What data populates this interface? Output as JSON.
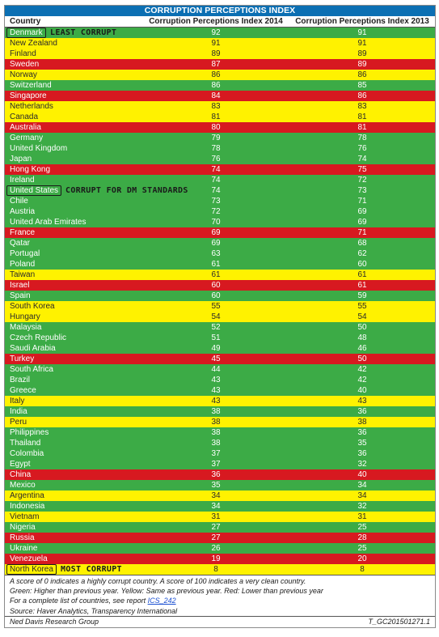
{
  "chart_data": {
    "type": "table",
    "title": "CORRUPTION PERCEPTIONS INDEX",
    "columns": [
      "Country",
      "Corruption Perceptions Index 2014",
      "Corruption Perceptions Index 2013"
    ],
    "rows": [
      {
        "country": "Denmark",
        "v2014": "92",
        "v2013": "91",
        "color": "green",
        "annotation": "LEAST CORRUPT",
        "boxed": true
      },
      {
        "country": "New Zealand",
        "v2014": "91",
        "v2013": "91",
        "color": "yellow"
      },
      {
        "country": "Finland",
        "v2014": "89",
        "v2013": "89",
        "color": "yellow"
      },
      {
        "country": "Sweden",
        "v2014": "87",
        "v2013": "89",
        "color": "red"
      },
      {
        "country": "Norway",
        "v2014": "86",
        "v2013": "86",
        "color": "yellow"
      },
      {
        "country": "Switzerland",
        "v2014": "86",
        "v2013": "85",
        "color": "green"
      },
      {
        "country": "Singapore",
        "v2014": "84",
        "v2013": "86",
        "color": "red"
      },
      {
        "country": "Netherlands",
        "v2014": "83",
        "v2013": "83",
        "color": "yellow"
      },
      {
        "country": "Canada",
        "v2014": "81",
        "v2013": "81",
        "color": "yellow"
      },
      {
        "country": "Australia",
        "v2014": "80",
        "v2013": "81",
        "color": "red"
      },
      {
        "country": "Germany",
        "v2014": "79",
        "v2013": "78",
        "color": "green"
      },
      {
        "country": "United Kingdom",
        "v2014": "78",
        "v2013": "76",
        "color": "green"
      },
      {
        "country": "Japan",
        "v2014": "76",
        "v2013": "74",
        "color": "green"
      },
      {
        "country": "Hong Kong",
        "v2014": "74",
        "v2013": "75",
        "color": "red"
      },
      {
        "country": "Ireland",
        "v2014": "74",
        "v2013": "72",
        "color": "green"
      },
      {
        "country": "United States",
        "v2014": "74",
        "v2013": "73",
        "color": "green",
        "annotation": "CORRUPT FOR DM STANDARDS",
        "boxed": true
      },
      {
        "country": "Chile",
        "v2014": "73",
        "v2013": "71",
        "color": "green"
      },
      {
        "country": "Austria",
        "v2014": "72",
        "v2013": "69",
        "color": "green"
      },
      {
        "country": "United Arab Emirates",
        "v2014": "70",
        "v2013": "69",
        "color": "green"
      },
      {
        "country": "France",
        "v2014": "69",
        "v2013": "71",
        "color": "red"
      },
      {
        "country": "Qatar",
        "v2014": "69",
        "v2013": "68",
        "color": "green"
      },
      {
        "country": "Portugal",
        "v2014": "63",
        "v2013": "62",
        "color": "green"
      },
      {
        "country": "Poland",
        "v2014": "61",
        "v2013": "60",
        "color": "green"
      },
      {
        "country": "Taiwan",
        "v2014": "61",
        "v2013": "61",
        "color": "yellow"
      },
      {
        "country": "Israel",
        "v2014": "60",
        "v2013": "61",
        "color": "red"
      },
      {
        "country": "Spain",
        "v2014": "60",
        "v2013": "59",
        "color": "green"
      },
      {
        "country": "South Korea",
        "v2014": "55",
        "v2013": "55",
        "color": "yellow"
      },
      {
        "country": "Hungary",
        "v2014": "54",
        "v2013": "54",
        "color": "yellow"
      },
      {
        "country": "Malaysia",
        "v2014": "52",
        "v2013": "50",
        "color": "green"
      },
      {
        "country": "Czech Republic",
        "v2014": "51",
        "v2013": "48",
        "color": "green"
      },
      {
        "country": "Saudi Arabia",
        "v2014": "49",
        "v2013": "46",
        "color": "green"
      },
      {
        "country": "Turkey",
        "v2014": "45",
        "v2013": "50",
        "color": "red"
      },
      {
        "country": "South Africa",
        "v2014": "44",
        "v2013": "42",
        "color": "green"
      },
      {
        "country": "Brazil",
        "v2014": "43",
        "v2013": "42",
        "color": "green"
      },
      {
        "country": "Greece",
        "v2014": "43",
        "v2013": "40",
        "color": "green"
      },
      {
        "country": "Italy",
        "v2014": "43",
        "v2013": "43",
        "color": "yellow"
      },
      {
        "country": "India",
        "v2014": "38",
        "v2013": "36",
        "color": "green"
      },
      {
        "country": "Peru",
        "v2014": "38",
        "v2013": "38",
        "color": "yellow"
      },
      {
        "country": "Philippines",
        "v2014": "38",
        "v2013": "36",
        "color": "green"
      },
      {
        "country": "Thailand",
        "v2014": "38",
        "v2013": "35",
        "color": "green"
      },
      {
        "country": "Colombia",
        "v2014": "37",
        "v2013": "36",
        "color": "green"
      },
      {
        "country": "Egypt",
        "v2014": "37",
        "v2013": "32",
        "color": "green"
      },
      {
        "country": "China",
        "v2014": "36",
        "v2013": "40",
        "color": "red"
      },
      {
        "country": "Mexico",
        "v2014": "35",
        "v2013": "34",
        "color": "green"
      },
      {
        "country": "Argentina",
        "v2014": "34",
        "v2013": "34",
        "color": "yellow"
      },
      {
        "country": "Indonesia",
        "v2014": "34",
        "v2013": "32",
        "color": "green"
      },
      {
        "country": "Vietnam",
        "v2014": "31",
        "v2013": "31",
        "color": "yellow"
      },
      {
        "country": "Nigeria",
        "v2014": "27",
        "v2013": "25",
        "color": "green"
      },
      {
        "country": "Russia",
        "v2014": "27",
        "v2013": "28",
        "color": "red"
      },
      {
        "country": "Ukraine",
        "v2014": "26",
        "v2013": "25",
        "color": "green"
      },
      {
        "country": "Venezuela",
        "v2014": "19",
        "v2013": "20",
        "color": "red"
      },
      {
        "country": "North Korea",
        "v2014": "8",
        "v2013": "8",
        "color": "yellow",
        "annotation": "MOST CORRUPT",
        "boxed": true
      }
    ]
  },
  "colors": {
    "green": "#3cab46",
    "yellow": "#fff200",
    "red": "#d71920",
    "title_bg": "#0b6fb3"
  },
  "notes": {
    "line1": "A score of 0 indicates a highly corrupt country.  A score of 100 indicates a very clean country.",
    "line2": "Green: Higher than previous year.  Yellow: Same as previous year.  Red: Lower than previous year",
    "line3_prefix": "For a complete list of countries, see report ",
    "line3_link": "ICS_242",
    "line4": "Source: Haver Analytics, Transparency International"
  },
  "footer": {
    "left": "Ned Davis Research Group",
    "right": "T_GC201501271.1"
  }
}
